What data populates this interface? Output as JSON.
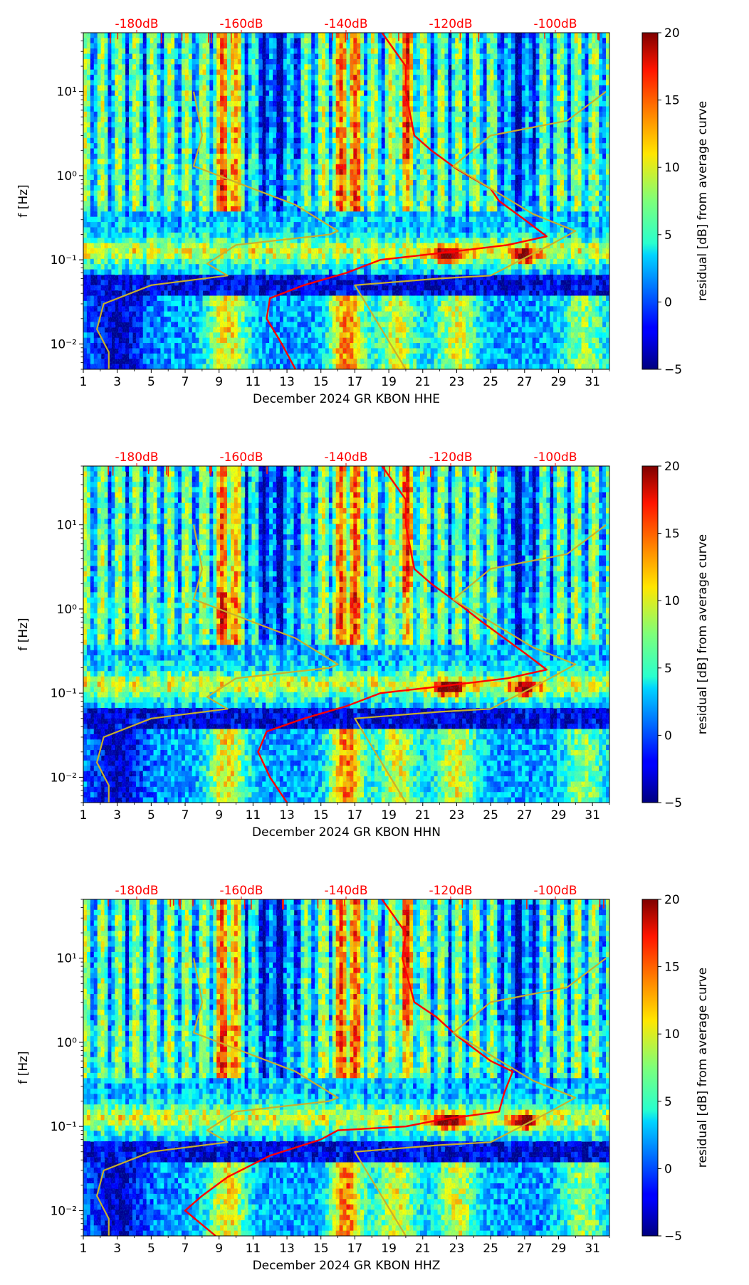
{
  "chart_data": [
    {
      "type": "heatmap",
      "xlabel": "December 2024 GR KBON  HHE",
      "ylabel": "f [Hz]",
      "x_ticks": [
        "1",
        "3",
        "5",
        "7",
        "9",
        "11",
        "13",
        "15",
        "17",
        "19",
        "21",
        "23",
        "25",
        "27",
        "29",
        "31"
      ],
      "xlim": [
        1,
        32
      ],
      "ylim": [
        0.005,
        50
      ],
      "y_scale": "log",
      "y_ticks": [
        "10⁻²",
        "10⁻¹",
        "10⁰",
        "10¹"
      ],
      "top_axis_labels": [
        "-180dB",
        "-160dB",
        "-140dB",
        "-120dB",
        "-100dB"
      ],
      "colorbar": {
        "label": "residual [dB] from average curve",
        "ticks": [
          "20",
          "15",
          "10",
          "5",
          "0",
          "−5"
        ],
        "range": [
          -5,
          20
        ]
      },
      "series": [
        {
          "name": "average PSD (red)",
          "points": [
            [
              13.5,
              0.005
            ],
            [
              12.7,
              0.01
            ],
            [
              11.8,
              0.02
            ],
            [
              12,
              0.035
            ],
            [
              14,
              0.05
            ],
            [
              16.5,
              0.07
            ],
            [
              18.5,
              0.1
            ],
            [
              22,
              0.12
            ],
            [
              26,
              0.15
            ],
            [
              28.3,
              0.19
            ],
            [
              27,
              0.3
            ],
            [
              25.5,
              0.5
            ],
            [
              25,
              0.7
            ],
            [
              23,
              1.2
            ],
            [
              21.5,
              2
            ],
            [
              20.5,
              3
            ],
            [
              20,
              10
            ],
            [
              20,
              20
            ],
            [
              18.6,
              50
            ]
          ]
        },
        {
          "name": "low noise model (olive)",
          "points": [
            [
              2.5,
              0.005
            ],
            [
              2.5,
              0.008
            ],
            [
              1.8,
              0.015
            ],
            [
              2.2,
              0.03
            ],
            [
              5,
              0.05
            ],
            [
              9.5,
              0.065
            ],
            [
              8.3,
              0.09
            ],
            [
              10,
              0.15
            ],
            [
              15.5,
              0.2
            ],
            [
              16,
              0.22
            ],
            [
              13.5,
              0.45
            ],
            [
              7.5,
              1.3
            ],
            [
              8,
              3
            ],
            [
              7.8,
              5
            ],
            [
              7.5,
              10
            ]
          ]
        },
        {
          "name": "high noise model (olive)",
          "points": [
            [
              20,
              0.005
            ],
            [
              17,
              0.05
            ],
            [
              22,
              0.06
            ],
            [
              25,
              0.065
            ],
            [
              28.5,
              0.15
            ],
            [
              30,
              0.22
            ],
            [
              27.5,
              0.35
            ],
            [
              22.8,
              1.3
            ],
            [
              25,
              3
            ],
            [
              29.5,
              4.5
            ],
            [
              31.8,
              10
            ]
          ]
        }
      ]
    },
    {
      "type": "heatmap",
      "xlabel": "December 2024 GR KBON  HHN",
      "ylabel": "f [Hz]",
      "x_ticks": [
        "1",
        "3",
        "5",
        "7",
        "9",
        "11",
        "13",
        "15",
        "17",
        "19",
        "21",
        "23",
        "25",
        "27",
        "29",
        "31"
      ],
      "xlim": [
        1,
        32
      ],
      "ylim": [
        0.005,
        50
      ],
      "y_scale": "log",
      "y_ticks": [
        "10⁻²",
        "10⁻¹",
        "10⁰",
        "10¹"
      ],
      "top_axis_labels": [
        "-180dB",
        "-160dB",
        "-140dB",
        "-120dB",
        "-100dB"
      ],
      "colorbar": {
        "label": "residual [dB] from average curve",
        "ticks": [
          "20",
          "15",
          "10",
          "5",
          "0",
          "−5"
        ],
        "range": [
          -5,
          20
        ]
      },
      "series": [
        {
          "name": "average PSD (red)",
          "points": [
            [
              13,
              0.005
            ],
            [
              12,
              0.01
            ],
            [
              11.3,
              0.02
            ],
            [
              11.8,
              0.035
            ],
            [
              14,
              0.05
            ],
            [
              16.5,
              0.07
            ],
            [
              18.5,
              0.1
            ],
            [
              22,
              0.12
            ],
            [
              26,
              0.15
            ],
            [
              28.3,
              0.19
            ],
            [
              27,
              0.3
            ],
            [
              25.5,
              0.5
            ],
            [
              24.5,
              0.7
            ],
            [
              23,
              1.2
            ],
            [
              21.5,
              2
            ],
            [
              20.5,
              3
            ],
            [
              20,
              10
            ],
            [
              20,
              20
            ],
            [
              18.6,
              50
            ]
          ]
        },
        {
          "name": "low noise model (olive)",
          "points": [
            [
              2.5,
              0.005
            ],
            [
              2.5,
              0.008
            ],
            [
              1.8,
              0.015
            ],
            [
              2.2,
              0.03
            ],
            [
              5,
              0.05
            ],
            [
              9.5,
              0.065
            ],
            [
              8.3,
              0.09
            ],
            [
              10,
              0.15
            ],
            [
              15.5,
              0.2
            ],
            [
              16,
              0.22
            ],
            [
              13.5,
              0.45
            ],
            [
              7.5,
              1.3
            ],
            [
              8,
              3
            ],
            [
              7.8,
              5
            ],
            [
              7.5,
              10
            ]
          ]
        },
        {
          "name": "high noise model (olive)",
          "points": [
            [
              20,
              0.005
            ],
            [
              17,
              0.05
            ],
            [
              22,
              0.06
            ],
            [
              25,
              0.065
            ],
            [
              28.5,
              0.15
            ],
            [
              30,
              0.22
            ],
            [
              27.5,
              0.35
            ],
            [
              22.8,
              1.3
            ],
            [
              25,
              3
            ],
            [
              29.5,
              4.5
            ],
            [
              31.8,
              10
            ]
          ]
        }
      ]
    },
    {
      "type": "heatmap",
      "xlabel": "December 2024 GR KBON  HHZ",
      "ylabel": "f [Hz]",
      "x_ticks": [
        "1",
        "3",
        "5",
        "7",
        "9",
        "11",
        "13",
        "15",
        "17",
        "19",
        "21",
        "23",
        "25",
        "27",
        "29",
        "31"
      ],
      "xlim": [
        1,
        32
      ],
      "ylim": [
        0.005,
        50
      ],
      "y_scale": "log",
      "y_ticks": [
        "10⁻²",
        "10⁻¹",
        "10⁰",
        "10¹"
      ],
      "top_axis_labels": [
        "-180dB",
        "-160dB",
        "-140dB",
        "-120dB",
        "-100dB"
      ],
      "colorbar": {
        "label": "residual [dB] from average curve",
        "ticks": [
          "20",
          "15",
          "10",
          "5",
          "0",
          "−5"
        ],
        "range": [
          -5,
          20
        ]
      },
      "series": [
        {
          "name": "average PSD (red)",
          "points": [
            [
              8.8,
              0.005
            ],
            [
              7,
              0.01
            ],
            [
              8,
              0.015
            ],
            [
              9.5,
              0.025
            ],
            [
              12,
              0.045
            ],
            [
              15,
              0.07
            ],
            [
              16,
              0.09
            ],
            [
              20,
              0.1
            ],
            [
              22,
              0.12
            ],
            [
              25.5,
              0.15
            ],
            [
              25.8,
              0.25
            ],
            [
              26.3,
              0.45
            ],
            [
              25,
              0.6
            ],
            [
              23,
              1.2
            ],
            [
              21.8,
              2
            ],
            [
              20.5,
              3
            ],
            [
              19.8,
              10
            ],
            [
              20,
              20
            ],
            [
              18.6,
              50
            ]
          ]
        },
        {
          "name": "low noise model (olive)",
          "points": [
            [
              2.5,
              0.005
            ],
            [
              2.5,
              0.008
            ],
            [
              1.8,
              0.015
            ],
            [
              2.2,
              0.03
            ],
            [
              5,
              0.05
            ],
            [
              9.5,
              0.065
            ],
            [
              8.3,
              0.09
            ],
            [
              10,
              0.15
            ],
            [
              15.5,
              0.2
            ],
            [
              16,
              0.22
            ],
            [
              13.5,
              0.45
            ],
            [
              7.5,
              1.3
            ],
            [
              8,
              3
            ],
            [
              7.8,
              5
            ],
            [
              7.5,
              10
            ]
          ]
        },
        {
          "name": "high noise model (olive)",
          "points": [
            [
              20,
              0.005
            ],
            [
              17,
              0.05
            ],
            [
              22,
              0.06
            ],
            [
              25,
              0.065
            ],
            [
              28.5,
              0.15
            ],
            [
              30,
              0.22
            ],
            [
              27.5,
              0.35
            ],
            [
              22.8,
              1.3
            ],
            [
              25,
              3
            ],
            [
              29.5,
              4.5
            ],
            [
              31.8,
              10
            ]
          ]
        }
      ]
    }
  ],
  "colors": {
    "average_curve": "#ff0000",
    "noise_model": "#c8b02c",
    "top_axis_text": "#ff0000",
    "axis": "#000000"
  }
}
